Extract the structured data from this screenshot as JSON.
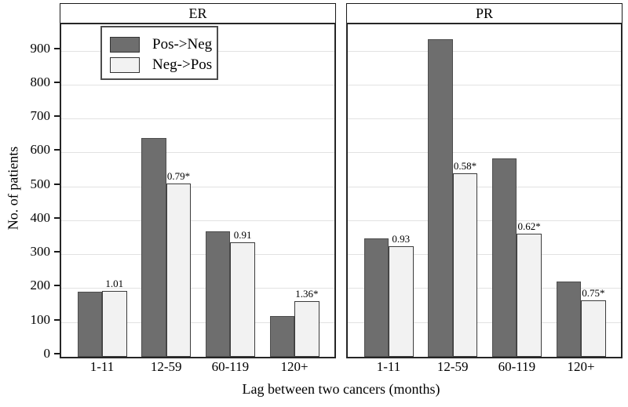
{
  "chart_data": {
    "type": "bar",
    "variant": "grouped-bar-two-panels",
    "title": "",
    "xlabel": "Lag between two cancers (months)",
    "ylabel": "No. of patients",
    "ylim": [
      0,
      980
    ],
    "yticks": [
      0,
      100,
      200,
      300,
      400,
      500,
      600,
      700,
      800,
      900
    ],
    "grid": "horizontal",
    "categories": [
      "1-11",
      "12-59",
      "60-119",
      "120+"
    ],
    "legend": [
      {
        "name": "Pos->Neg",
        "color": "#6e6e6e"
      },
      {
        "name": "Neg->Pos",
        "color": "#f2f2f2"
      }
    ],
    "legend_position": "upper-left-of-first-panel",
    "colors": {
      "bar_dark": "#6e6e6e",
      "bar_dark_border": "#4d4d4d",
      "bar_light": "#f2f2f2",
      "bar_light_border": "#3c3c3c",
      "gridline": "#e2e2e2",
      "frame": "#262626",
      "text": "#000000"
    },
    "panels": [
      {
        "label": "ER",
        "series": [
          {
            "name": "Pos->Neg",
            "values": [
              193,
              645,
              370,
              121
            ]
          },
          {
            "name": "Neg->Pos",
            "values": [
              195,
              510,
              337,
              164
            ]
          }
        ],
        "annotations": [
          "1.01",
          "0.79*",
          "0.91",
          "1.36*"
        ]
      },
      {
        "label": "PR",
        "series": [
          {
            "name": "Pos->Neg",
            "values": [
              350,
              935,
              585,
              221
            ]
          },
          {
            "name": "Neg->Pos",
            "values": [
              326,
              542,
              363,
              166
            ]
          }
        ],
        "annotations": [
          "0.93",
          "0.58*",
          "0.62*",
          "0.75*"
        ]
      }
    ]
  }
}
